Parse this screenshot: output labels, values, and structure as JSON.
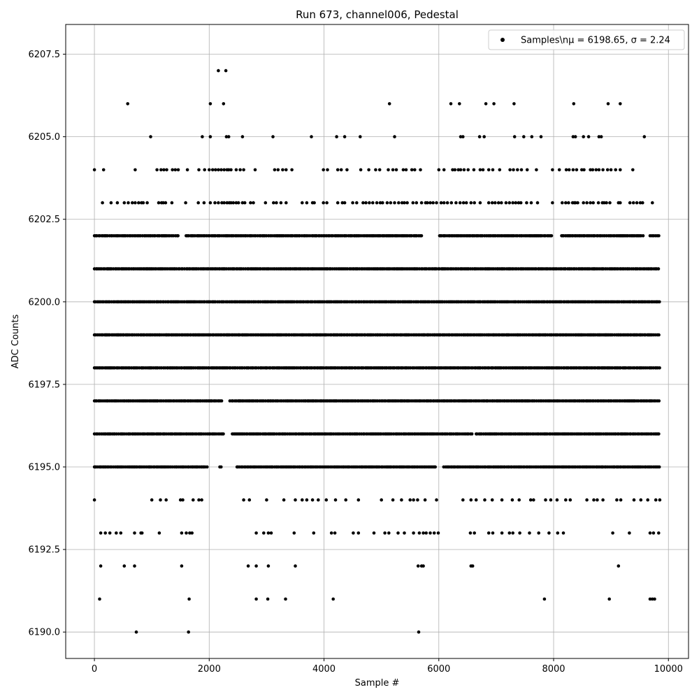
{
  "chart_data": {
    "type": "scatter",
    "title": "Run 673, channel006, Pedestal",
    "xlabel": "Sample #",
    "ylabel": "ADC Counts",
    "xlim": [
      -500,
      10350
    ],
    "ylim": [
      6189.2,
      6208.4
    ],
    "xticks": [
      0,
      2000,
      4000,
      6000,
      8000,
      10000
    ],
    "xtick_labels": [
      "0",
      "2000",
      "4000",
      "6000",
      "8000",
      "10000"
    ],
    "yticks": [
      6190.0,
      6192.5,
      6195.0,
      6197.5,
      6200.0,
      6202.5,
      6205.0,
      6207.5
    ],
    "ytick_labels": [
      "6190.0",
      "6192.5",
      "6195.0",
      "6197.5",
      "6200.0",
      "6202.5",
      "6205.0",
      "6207.5"
    ],
    "grid": true,
    "legend_position": "top-right",
    "series": [
      {
        "name": "Samples\\nμ = 6198.65, σ = 2.24",
        "color": "#000000",
        "marker": "circle",
        "n_samples": 9850,
        "levels": [
          {
            "y": 6190,
            "x": [
              730,
              1640,
              5650
            ]
          },
          {
            "y": 6191,
            "x": [
              90,
              1650,
              2820,
              3020,
              3330,
              4160,
              7840,
              8970,
              9680,
              9720,
              9760
            ]
          },
          {
            "y": 6192,
            "x": [
              110,
              520,
              700,
              1520,
              2680,
              2820,
              3030,
              3500,
              5640,
              5700,
              5730,
              6560,
              6590,
              9130
            ]
          },
          {
            "y": 6193,
            "x": [
              110,
              190,
              270,
              380,
              460,
              700,
              810,
              830,
              1130,
              1520,
              1600,
              1660,
              1700,
              2820,
              2950,
              3030,
              3080,
              3480,
              3820,
              4130,
              4190,
              4510,
              4600,
              4870,
              5060,
              5130,
              5290,
              5400,
              5560,
              5660,
              5730,
              5780,
              5850,
              5920,
              5990,
              6550,
              6620,
              6870,
              6940,
              7100,
              7230,
              7290,
              7410,
              7580,
              7740,
              7920,
              8070,
              8170,
              9030,
              9320,
              9680,
              9740,
              9830
            ]
          },
          {
            "y": 6194,
            "x": [
              0,
              1000,
              1150,
              1250,
              1500,
              1540,
              1720,
              1820,
              1870,
              2600,
              2700,
              3000,
              3300,
              3500,
              3620,
              3700,
              3800,
              3900,
              4040,
              4200,
              4380,
              4600,
              5000,
              5200,
              5350,
              5500,
              5560,
              5630,
              5760,
              5960,
              6420,
              6560,
              6650,
              6800,
              6930,
              7100,
              7280,
              7400,
              7600,
              7650,
              7860,
              7950,
              8060,
              8210,
              8290,
              8580,
              8700,
              8760,
              8860,
              9100,
              9170,
              9400,
              9520,
              9640,
              9780,
              9850
            ]
          },
          {
            "y": 6195,
            "dense": true,
            "x_range": [
              0,
              9850
            ],
            "gaps": [
              [
                1970,
                2180
              ],
              [
                2210,
                2470
              ],
              [
                5960,
                6080
              ]
            ]
          },
          {
            "y": 6196,
            "dense": true,
            "x_range": [
              0,
              9850
            ],
            "gaps": [
              [
                2260,
                2380
              ],
              [
                6580,
                6640
              ]
            ]
          },
          {
            "y": 6197,
            "dense": true,
            "x_range": [
              0,
              9850
            ],
            "gaps": [
              [
                2230,
                2330
              ]
            ]
          },
          {
            "y": 6198,
            "dense": true,
            "x_range": [
              0,
              9850
            ],
            "gaps": []
          },
          {
            "y": 6199,
            "dense": true,
            "x_range": [
              0,
              9850
            ],
            "gaps": []
          },
          {
            "y": 6200,
            "dense": true,
            "x_range": [
              0,
              9850
            ],
            "gaps": []
          },
          {
            "y": 6201,
            "dense": true,
            "x_range": [
              0,
              9850
            ],
            "gaps": []
          },
          {
            "y": 6202,
            "dense": true,
            "x_range": [
              0,
              9850
            ],
            "gaps": [
              [
                1480,
                1580
              ],
              [
                5700,
                6000
              ],
              [
                7970,
                8130
              ],
              [
                9570,
                9660
              ]
            ]
          },
          {
            "y": 6203,
            "x": [
              140,
              290,
              400,
              520,
              590,
              660,
              710,
              770,
              820,
              850,
              920,
              1120,
              1170,
              1200,
              1240,
              1350,
              1590,
              1810,
              1910,
              2020,
              2100,
              2160,
              2220,
              2260,
              2310,
              2350,
              2380,
              2420,
              2470,
              2510,
              2580,
              2620,
              2720,
              2770,
              2980,
              3120,
              3170,
              3250,
              3340,
              3620,
              3700,
              3800,
              3830,
              3990,
              4050,
              4240,
              4320,
              4360,
              4500,
              4570,
              4680,
              4730,
              4790,
              4850,
              4920,
              4980,
              5020,
              5100,
              5160,
              5230,
              5300,
              5360,
              5400,
              5450,
              5550,
              5610,
              5700,
              5770,
              5800,
              5850,
              5900,
              5960,
              6040,
              6090,
              6150,
              6220,
              6300,
              6370,
              6430,
              6480,
              6560,
              6620,
              6720,
              6870,
              6930,
              6980,
              7040,
              7090,
              7170,
              7230,
              7290,
              7340,
              7390,
              7430,
              7530,
              7610,
              7720,
              7980,
              8150,
              8210,
              8260,
              8330,
              8360,
              8380,
              8420,
              8520,
              8580,
              8640,
              8690,
              8780,
              8850,
              8880,
              8920,
              8980,
              9130,
              9160,
              9330,
              9390,
              9450,
              9510,
              9550,
              9720
            ]
          },
          {
            "y": 6204,
            "x": [
              0,
              160,
              710,
              1090,
              1160,
              1210,
              1260,
              1360,
              1410,
              1460,
              1620,
              1820,
              1920,
              2000,
              2060,
              2110,
              2160,
              2210,
              2260,
              2310,
              2340,
              2380,
              2470,
              2540,
              2600,
              2800,
              3140,
              3200,
              3280,
              3340,
              3440,
              3990,
              4060,
              4240,
              4300,
              4400,
              4640,
              4780,
              4900,
              4970,
              5120,
              5200,
              5260,
              5380,
              5430,
              5530,
              5580,
              5680,
              6000,
              6090,
              6240,
              6280,
              6340,
              6380,
              6440,
              6510,
              6610,
              6720,
              6770,
              6870,
              6940,
              7060,
              7240,
              7300,
              7370,
              7440,
              7540,
              7700,
              7980,
              8100,
              8220,
              8270,
              8340,
              8400,
              8490,
              8530,
              8640,
              8680,
              8740,
              8790,
              8860,
              8940,
              9000,
              9080,
              9160,
              9380
            ]
          },
          {
            "y": 6205,
            "x": [
              980,
              1880,
              2020,
              2300,
              2340,
              2580,
              3110,
              3780,
              4220,
              4360,
              4630,
              5230,
              6380,
              6420,
              6710,
              6790,
              7320,
              7480,
              7620,
              7780,
              8340,
              8380,
              8520,
              8610,
              8790,
              8830,
              9580
            ]
          },
          {
            "y": 6206,
            "x": [
              580,
              2020,
              2250,
              5140,
              6210,
              6360,
              6820,
              6960,
              7310,
              8350,
              8950,
              9160
            ]
          },
          {
            "y": 6207,
            "x": [
              2160,
              2290
            ]
          }
        ]
      }
    ]
  }
}
